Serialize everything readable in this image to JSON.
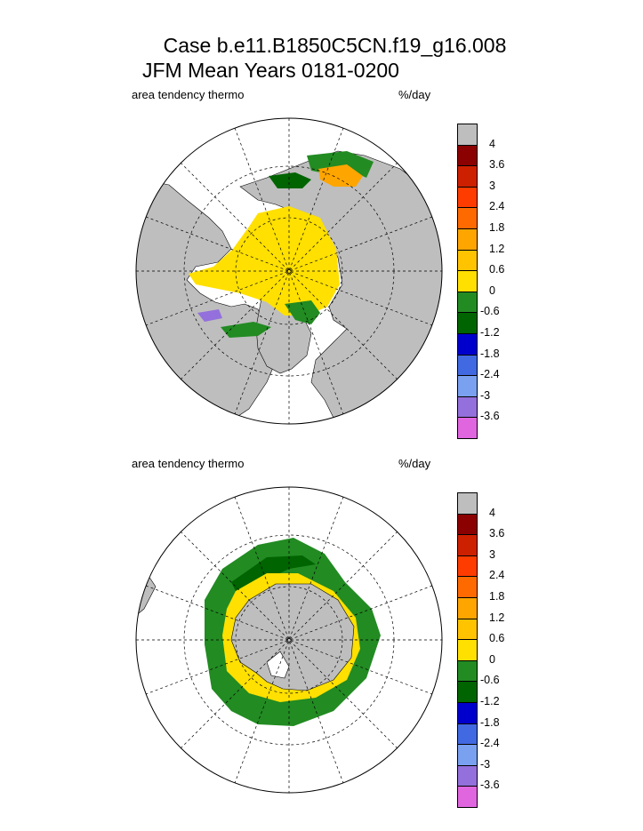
{
  "title": {
    "line1": "Case b.e11.B1850C5CN.f19_g16.008",
    "line2": "JFM Mean     Years 0181-0200"
  },
  "colors": {
    "land": "#bebebe",
    "ocean": "#ffffff",
    "levels": [
      "#bebebe",
      "#8b0000",
      "#cd2000",
      "#ff3c00",
      "#ff6a00",
      "#ffa500",
      "#ffc300",
      "#ffe000",
      "#228b22",
      "#006400",
      "#0000cd",
      "#4169e1",
      "#7aa0f0",
      "#9370db",
      "#e066e0"
    ]
  },
  "chart_data": [
    {
      "type": "heatmap",
      "projection": "polar-stereographic-north",
      "variable_label": "area tendency thermo",
      "units_label": "%/day",
      "colorbar_ticks": [
        "4",
        "3.6",
        "3",
        "2.4",
        "1.8",
        "1.2",
        "0.6",
        "0",
        "-0.6",
        "-1.2",
        "-1.8",
        "-2.4",
        "-3",
        "-3.6"
      ],
      "dominant_field": "0 to 0.6 over central Arctic; -0.6 to -1.2 along Barents, Bering and Labrador ice edges; positive 1.2-3.6 near Barents coastal margin"
    },
    {
      "type": "heatmap",
      "projection": "polar-stereographic-south",
      "variable_label": "area tendency thermo",
      "units_label": "%/day",
      "colorbar_ticks": [
        "4",
        "3.6",
        "3",
        "2.4",
        "1.8",
        "1.2",
        "0.6",
        "0",
        "-0.6",
        "-1.2",
        "-1.8",
        "-2.4",
        "-3",
        "-3.6"
      ],
      "dominant_field": "-0.6 to 0 ring around Antarctica; 0 to 0.6 near coast; -1.2 in outer Weddell band"
    }
  ]
}
